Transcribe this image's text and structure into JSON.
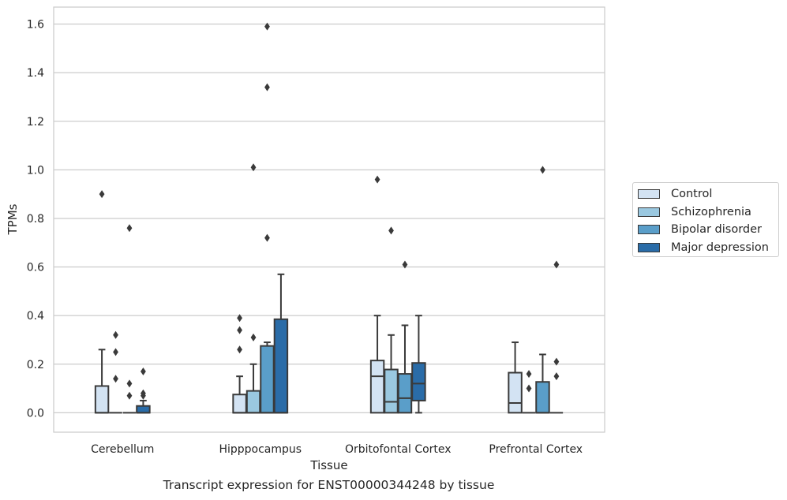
{
  "chart_data": {
    "type": "box",
    "title": "",
    "caption": "Transcript expression for ENST00000344248 by tissue",
    "xlabel": "Tissue",
    "ylabel": "TPMs",
    "ylim": [
      -0.08,
      1.67
    ],
    "yticks": [
      0.0,
      0.2,
      0.4,
      0.6,
      0.8,
      1.0,
      1.2,
      1.4,
      1.6
    ],
    "ytick_labels": [
      "0.0",
      "0.2",
      "0.4",
      "0.6",
      "0.8",
      "1.0",
      "1.2",
      "1.4",
      "1.6"
    ],
    "grid": true,
    "legend_position": "right",
    "categories": [
      "Cerebellum",
      "Hipppocampus",
      "Orbitofontal Cortex",
      "Prefrontal Cortex"
    ],
    "series": [
      {
        "name": "Control",
        "color": "#d3e3f3",
        "boxes": [
          {
            "q1": 0.0,
            "median": 0.0,
            "q3": 0.11,
            "whisker_low": 0.0,
            "whisker_high": 0.26,
            "outliers": [
              0.9
            ]
          },
          {
            "q1": 0.0,
            "median": 0.0,
            "q3": 0.075,
            "whisker_low": 0.0,
            "whisker_high": 0.15,
            "outliers": [
              0.26,
              0.34,
              0.39
            ]
          },
          {
            "q1": 0.0,
            "median": 0.15,
            "q3": 0.215,
            "whisker_low": 0.0,
            "whisker_high": 0.4,
            "outliers": [
              0.96
            ]
          },
          {
            "q1": 0.0,
            "median": 0.04,
            "q3": 0.165,
            "whisker_low": 0.0,
            "whisker_high": 0.29,
            "outliers": []
          }
        ]
      },
      {
        "name": "Schizophrenia",
        "color": "#9ac8e0",
        "boxes": [
          {
            "q1": 0.0,
            "median": 0.0,
            "q3": 0.0,
            "whisker_low": 0.0,
            "whisker_high": 0.0,
            "outliers": [
              0.14,
              0.25,
              0.32
            ]
          },
          {
            "q1": 0.0,
            "median": 0.0,
            "q3": 0.09,
            "whisker_low": 0.0,
            "whisker_high": 0.2,
            "outliers": [
              0.31,
              1.01
            ]
          },
          {
            "q1": 0.0,
            "median": 0.045,
            "q3": 0.178,
            "whisker_low": 0.0,
            "whisker_high": 0.32,
            "outliers": [
              0.75
            ]
          },
          {
            "q1": 0.0,
            "median": 0.0,
            "q3": 0.0,
            "whisker_low": 0.0,
            "whisker_high": 0.0,
            "outliers": [
              0.1,
              0.16
            ]
          }
        ]
      },
      {
        "name": "Bipolar disorder",
        "color": "#5a9ec9",
        "boxes": [
          {
            "q1": 0.0,
            "median": 0.0,
            "q3": 0.0,
            "whisker_low": 0.0,
            "whisker_high": 0.0,
            "outliers": [
              0.07,
              0.12,
              0.76
            ]
          },
          {
            "q1": 0.0,
            "median": 0.0,
            "q3": 0.275,
            "whisker_low": 0.0,
            "whisker_high": 0.29,
            "outliers": [
              0.72,
              1.34,
              1.59
            ]
          },
          {
            "q1": 0.0,
            "median": 0.06,
            "q3": 0.16,
            "whisker_low": 0.0,
            "whisker_high": 0.36,
            "outliers": [
              0.61
            ]
          },
          {
            "q1": 0.0,
            "median": 0.0,
            "q3": 0.127,
            "whisker_low": 0.0,
            "whisker_high": 0.24,
            "outliers": [
              1.0
            ]
          }
        ]
      },
      {
        "name": "Major depression",
        "color": "#2a6ca8",
        "boxes": [
          {
            "q1": 0.0,
            "median": 0.0,
            "q3": 0.028,
            "whisker_low": 0.0,
            "whisker_high": 0.05,
            "outliers": [
              0.07,
              0.08,
              0.17
            ]
          },
          {
            "q1": 0.0,
            "median": 0.0,
            "q3": 0.385,
            "whisker_low": 0.0,
            "whisker_high": 0.57,
            "outliers": []
          },
          {
            "q1": 0.05,
            "median": 0.12,
            "q3": 0.205,
            "whisker_low": 0.0,
            "whisker_high": 0.4,
            "outliers": []
          },
          {
            "q1": 0.0,
            "median": 0.0,
            "q3": 0.0,
            "whisker_low": 0.0,
            "whisker_high": 0.0,
            "outliers": [
              0.15,
              0.21,
              0.61
            ]
          }
        ]
      }
    ]
  }
}
